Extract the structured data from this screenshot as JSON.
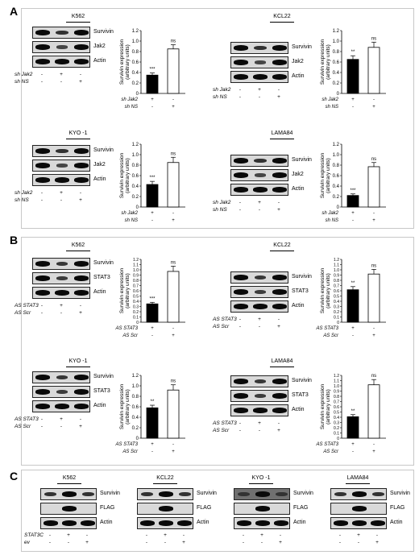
{
  "panels": {
    "A": {
      "letter": "A",
      "knockdown": "sh Jak2",
      "control": "sh NS",
      "rows": [
        "Survivin",
        "Jak2",
        "Actin"
      ],
      "cells": [
        {
          "name": "K562",
          "proteins": [
            "Survivin",
            "Jak2",
            "Actin"
          ],
          "signs": {
            "kd": [
              "-",
              "+",
              "-"
            ],
            "ctrl": [
              "-",
              "-",
              "+"
            ]
          }
        },
        {
          "name": "KCL22",
          "proteins": [
            "Survivin",
            "Jak2",
            "Actin"
          ],
          "signs": {
            "kd": [
              "-",
              "+",
              "-"
            ],
            "ctrl": [
              "-",
              "-",
              "+"
            ]
          }
        },
        {
          "name": "KYO -1",
          "proteins": [
            "Survivin",
            "Jak2",
            "Actin"
          ],
          "signs": {
            "kd": [
              "-",
              "+",
              "-"
            ],
            "ctrl": [
              "-",
              "-",
              "+"
            ]
          }
        },
        {
          "name": "LAMA84",
          "proteins": [
            "Survivin",
            "Jak2",
            "Actin"
          ],
          "signs": {
            "kd": [
              "-",
              "+",
              "-"
            ],
            "ctrl": [
              "-",
              "-",
              "+"
            ]
          }
        }
      ]
    },
    "B": {
      "letter": "B",
      "knockdown": "AS STAT3",
      "control": "AS Scr",
      "cells": [
        {
          "name": "K562",
          "proteins": [
            "Survivin",
            "STAT3",
            "Actin"
          ]
        },
        {
          "name": "KCL22",
          "proteins": [
            "Survivin",
            "STAT3",
            "Actin"
          ]
        },
        {
          "name": "KYO -1",
          "proteins": [
            "Survivin",
            "STAT3",
            "Actin"
          ]
        },
        {
          "name": "LAMA84",
          "proteins": [
            "Survivin",
            "STAT3",
            "Actin"
          ]
        }
      ]
    },
    "C": {
      "letter": "C",
      "treat1": "STAT3C",
      "treat2": "ev",
      "treat1_signs": [
        "-",
        "+",
        "-"
      ],
      "treat2_signs": [
        "-",
        "-",
        "+"
      ],
      "cells": [
        {
          "name": "K562",
          "proteins": [
            "Survivin",
            "FLAG",
            "Actin"
          ]
        },
        {
          "name": "KCL22",
          "proteins": [
            "Survivin",
            "FLAG",
            "Actin"
          ]
        },
        {
          "name": "KYO -1",
          "proteins": [
            "Survivin",
            "FLAG",
            "Actin"
          ]
        },
        {
          "name": "LAMA84",
          "proteins": [
            "Survivin",
            "FLAG",
            "Actin"
          ]
        }
      ]
    }
  },
  "chart_data": [
    {
      "type": "bar",
      "panel": "A",
      "cell": "K562",
      "ylabel": "Survivin expression (arbitrary units)",
      "ylim": [
        0,
        1.2
      ],
      "yticks": [
        "0",
        "0.2",
        "0.4",
        "0.6",
        "0.8",
        "1.0",
        "1.2"
      ],
      "values": [
        0.35,
        0.85
      ],
      "errors": [
        0.04,
        0.08
      ],
      "sig": [
        "***",
        "ns"
      ],
      "fills": [
        "#000000",
        "#ffffff"
      ],
      "row1": {
        "label": "sh Jak2",
        "signs": [
          "+",
          "-"
        ]
      },
      "row2": {
        "label": "sh NS",
        "signs": [
          "-",
          "+"
        ]
      }
    },
    {
      "type": "bar",
      "panel": "A",
      "cell": "KCL22",
      "ylabel": "Survivin expression (arbitrary units)",
      "ylim": [
        0,
        1.2
      ],
      "yticks": [
        "0",
        "0.2",
        "0.4",
        "0.6",
        "0.8",
        "1.0",
        "1.2"
      ],
      "values": [
        0.65,
        0.88
      ],
      "errors": [
        0.07,
        0.1
      ],
      "sig": [
        "**",
        "ns"
      ],
      "fills": [
        "#000000",
        "#ffffff"
      ],
      "row1": {
        "label": "sh Jak2",
        "signs": [
          "+",
          "-"
        ]
      },
      "row2": {
        "label": "sh NS",
        "signs": [
          "-",
          "+"
        ]
      }
    },
    {
      "type": "bar",
      "panel": "A",
      "cell": "KYO -1",
      "ylabel": "Survivin expression (arbitrary units)",
      "ylim": [
        0,
        1.2
      ],
      "yticks": [
        "0",
        "0.2",
        "0.4",
        "0.6",
        "0.8",
        "1.0",
        "1.2"
      ],
      "values": [
        0.43,
        0.85
      ],
      "errors": [
        0.06,
        0.1
      ],
      "sig": [
        "***",
        "ns"
      ],
      "fills": [
        "#000000",
        "#ffffff"
      ],
      "row1": {
        "label": "sh Jak2",
        "signs": [
          "+",
          "-"
        ]
      },
      "row2": {
        "label": "sh NS",
        "signs": [
          "-",
          "+"
        ]
      }
    },
    {
      "type": "bar",
      "panel": "A",
      "cell": "LAMA84",
      "ylabel": "Survivin expression (arbitrary units)",
      "ylim": [
        0,
        1.2
      ],
      "yticks": [
        "0",
        "0.2",
        "0.4",
        "0.6",
        "0.8",
        "1.0",
        "1.2"
      ],
      "values": [
        0.22,
        0.77
      ],
      "errors": [
        0.03,
        0.08
      ],
      "sig": [
        "***",
        "ns"
      ],
      "fills": [
        "#000000",
        "#ffffff"
      ],
      "row1": {
        "label": "sh Jak2",
        "signs": [
          "+",
          "-"
        ]
      },
      "row2": {
        "label": "sh NS",
        "signs": [
          "-",
          "+"
        ]
      }
    },
    {
      "type": "bar",
      "panel": "B",
      "cell": "K562",
      "ylabel": "Survivin expression (arbitrary units)",
      "ylim": [
        0,
        1.2
      ],
      "yticks": [
        "0",
        "0.1",
        "0.2",
        "0.3",
        "0.4",
        "0.5",
        "0.6",
        "0.7",
        "0.8",
        "0.9",
        "1.0",
        "1.1",
        "1.2"
      ],
      "values": [
        0.35,
        0.97
      ],
      "errors": [
        0.03,
        0.1
      ],
      "sig": [
        "***",
        "ns"
      ],
      "fills": [
        "#000000",
        "#ffffff"
      ],
      "row1": {
        "label": "AS STAT3",
        "signs": [
          "+",
          "-"
        ]
      },
      "row2": {
        "label": "AS Scr",
        "signs": [
          "-",
          "+"
        ]
      }
    },
    {
      "type": "bar",
      "panel": "B",
      "cell": "KCL22",
      "ylabel": "Survivin expression (arbitrary units)",
      "ylim": [
        0,
        1.2
      ],
      "yticks": [
        "0",
        "0.1",
        "0.2",
        "0.3",
        "0.4",
        "0.5",
        "0.6",
        "0.7",
        "0.8",
        "0.9",
        "1.0",
        "1.1",
        "1.2"
      ],
      "values": [
        0.62,
        0.92
      ],
      "errors": [
        0.06,
        0.09
      ],
      "sig": [
        "**",
        "ns"
      ],
      "fills": [
        "#000000",
        "#ffffff"
      ],
      "row1": {
        "label": "AS STAT3",
        "signs": [
          "+",
          "-"
        ]
      },
      "row2": {
        "label": "AS Scr",
        "signs": [
          "-",
          "+"
        ]
      }
    },
    {
      "type": "bar",
      "panel": "B",
      "cell": "KYO -1",
      "ylabel": "Survivin expression (arbitrary units)",
      "ylim": [
        0,
        1.2
      ],
      "yticks": [
        "0",
        "0.2",
        "0.4",
        "0.6",
        "0.8",
        "1.0",
        "1.2"
      ],
      "values": [
        0.58,
        0.92
      ],
      "errors": [
        0.05,
        0.1
      ],
      "sig": [
        "**",
        "ns"
      ],
      "fills": [
        "#000000",
        "#ffffff"
      ],
      "row1": {
        "label": "AS STAT3",
        "signs": [
          "+",
          "-"
        ]
      },
      "row2": {
        "label": "AS Scr",
        "signs": [
          "-",
          "+"
        ]
      }
    },
    {
      "type": "bar",
      "panel": "B",
      "cell": "LAMA84",
      "ylabel": "Survivin expression (arbitrary units)",
      "ylim": [
        0,
        1.2
      ],
      "yticks": [
        "0",
        "0.1",
        "0.2",
        "0.3",
        "0.4",
        "0.5",
        "0.6",
        "0.7",
        "0.8",
        "0.9",
        "1.0",
        "1.1",
        "1.2"
      ],
      "values": [
        0.41,
        1.02
      ],
      "errors": [
        0.04,
        0.1
      ],
      "sig": [
        "**",
        "ns"
      ],
      "fills": [
        "#000000",
        "#ffffff"
      ],
      "row1": {
        "label": "AS STAT3",
        "signs": [
          "+",
          "-"
        ]
      },
      "row2": {
        "label": "AS Scr",
        "signs": [
          "-",
          "+"
        ]
      }
    }
  ]
}
